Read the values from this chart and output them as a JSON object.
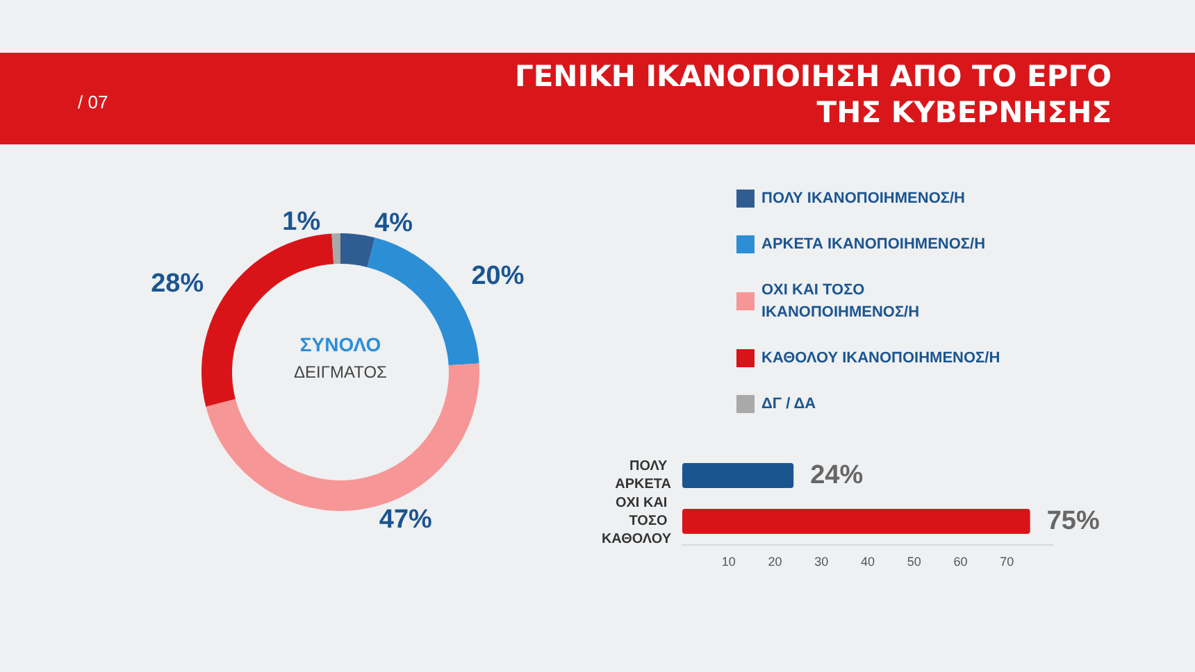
{
  "chart_data": [
    {
      "type": "donut",
      "title": "ΓΕΝΙΚΗ ΙΚΑΝΟΠΟΙΗΣΗ ΑΠΟ ΤΟ ΕΡΓΟ ΤΗΣ ΚΥΒΕΡΝΗΣΗΣ",
      "annotations": [
        "/ 07",
        "ΣΥΝΟΛΟ",
        "ΔΕΙΓΜΑΤΟΣ"
      ],
      "categories": [
        "ΠΟΛΥ ΙΚΑΝΟΠΟΙΗΜΕΝΟΣ/Η",
        "ΑΡΚΕΤΑ ΙΚΑΝΟΠΟΙΗΜΕΝΟΣ/Η",
        "ΟΧΙ ΚΑΙ ΤΟΣΟ ΙΚΑΝΟΠΟΙΗΜΕΝΟΣ/Η",
        "ΚΑΘΟΛΟΥ ΙΚΑΝΟΠΟΙΗΜΕΝΟΣ/Η",
        "ΔΓ / ΔΑ"
      ],
      "values": [
        4,
        20,
        47,
        28,
        1
      ],
      "value_labels": [
        "4%",
        "20%",
        "47%",
        "28%",
        "1%"
      ],
      "colors": [
        "#2f5d92",
        "#2c8fd6",
        "#f79696",
        "#d91418",
        "#a9a9a9"
      ],
      "legend": "right"
    },
    {
      "type": "bar",
      "orientation": "horizontal",
      "categories": [
        "ΠΟΛΥ ΑΡΚΕΤΑ",
        "ΟΧΙ ΚΑΙ ΤΟΣΟ ΚΑΘΟΛΟΥ"
      ],
      "values": [
        24,
        75
      ],
      "value_labels": [
        "24%",
        "75%"
      ],
      "colors": [
        "#1b5590",
        "#d91418"
      ],
      "xlim": [
        0,
        80
      ],
      "xticks": [
        10,
        20,
        30,
        40,
        50,
        60,
        70
      ],
      "grid": false
    }
  ]
}
